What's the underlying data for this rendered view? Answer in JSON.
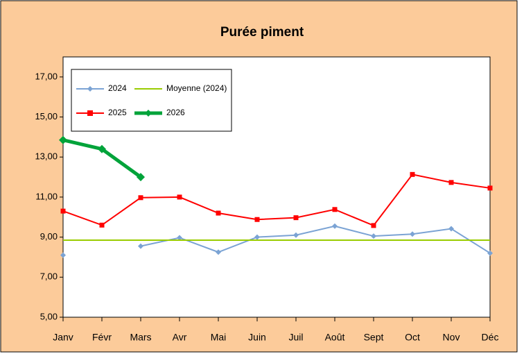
{
  "chart_data": {
    "type": "line",
    "title": "Purée piment",
    "categories": [
      "Janv",
      "Févr",
      "Mars",
      "Avr",
      "Mai",
      "Juin",
      "Juil",
      "Août",
      "Sept",
      "Oct",
      "Nov",
      "Déc"
    ],
    "series": [
      {
        "name": "2024",
        "color": "#7ba3d4",
        "marker": "diamond",
        "values": [
          8.1,
          null,
          8.55,
          8.97,
          8.25,
          9.0,
          9.1,
          9.55,
          9.05,
          9.15,
          9.42,
          8.2
        ]
      },
      {
        "name": "Moyenne (2024)",
        "color": "#99cc00",
        "marker": "none",
        "values": [
          8.85,
          8.85,
          8.85,
          8.85,
          8.85,
          8.85,
          8.85,
          8.85,
          8.85,
          8.85,
          8.85,
          8.85
        ]
      },
      {
        "name": "2025",
        "color": "#ff0000",
        "marker": "square",
        "values": [
          10.3,
          9.6,
          10.97,
          11.0,
          10.2,
          9.88,
          9.97,
          10.38,
          9.58,
          12.13,
          11.73,
          11.45
        ]
      },
      {
        "name": "2026",
        "color": "#00a33a",
        "marker": "diamond",
        "values": [
          13.85,
          13.4,
          12.0,
          null,
          null,
          null,
          null,
          null,
          null,
          null,
          null,
          null
        ]
      }
    ],
    "ylim": [
      5,
      18
    ],
    "yticks": [
      {
        "value": 5,
        "label": "5,00"
      },
      {
        "value": 7,
        "label": "7,00"
      },
      {
        "value": 9,
        "label": "9,00"
      },
      {
        "value": 11,
        "label": "11,00"
      },
      {
        "value": 13,
        "label": "13,00"
      },
      {
        "value": 15,
        "label": "15,00"
      },
      {
        "value": 17,
        "label": "17,00"
      }
    ],
    "legend": "top-left"
  }
}
